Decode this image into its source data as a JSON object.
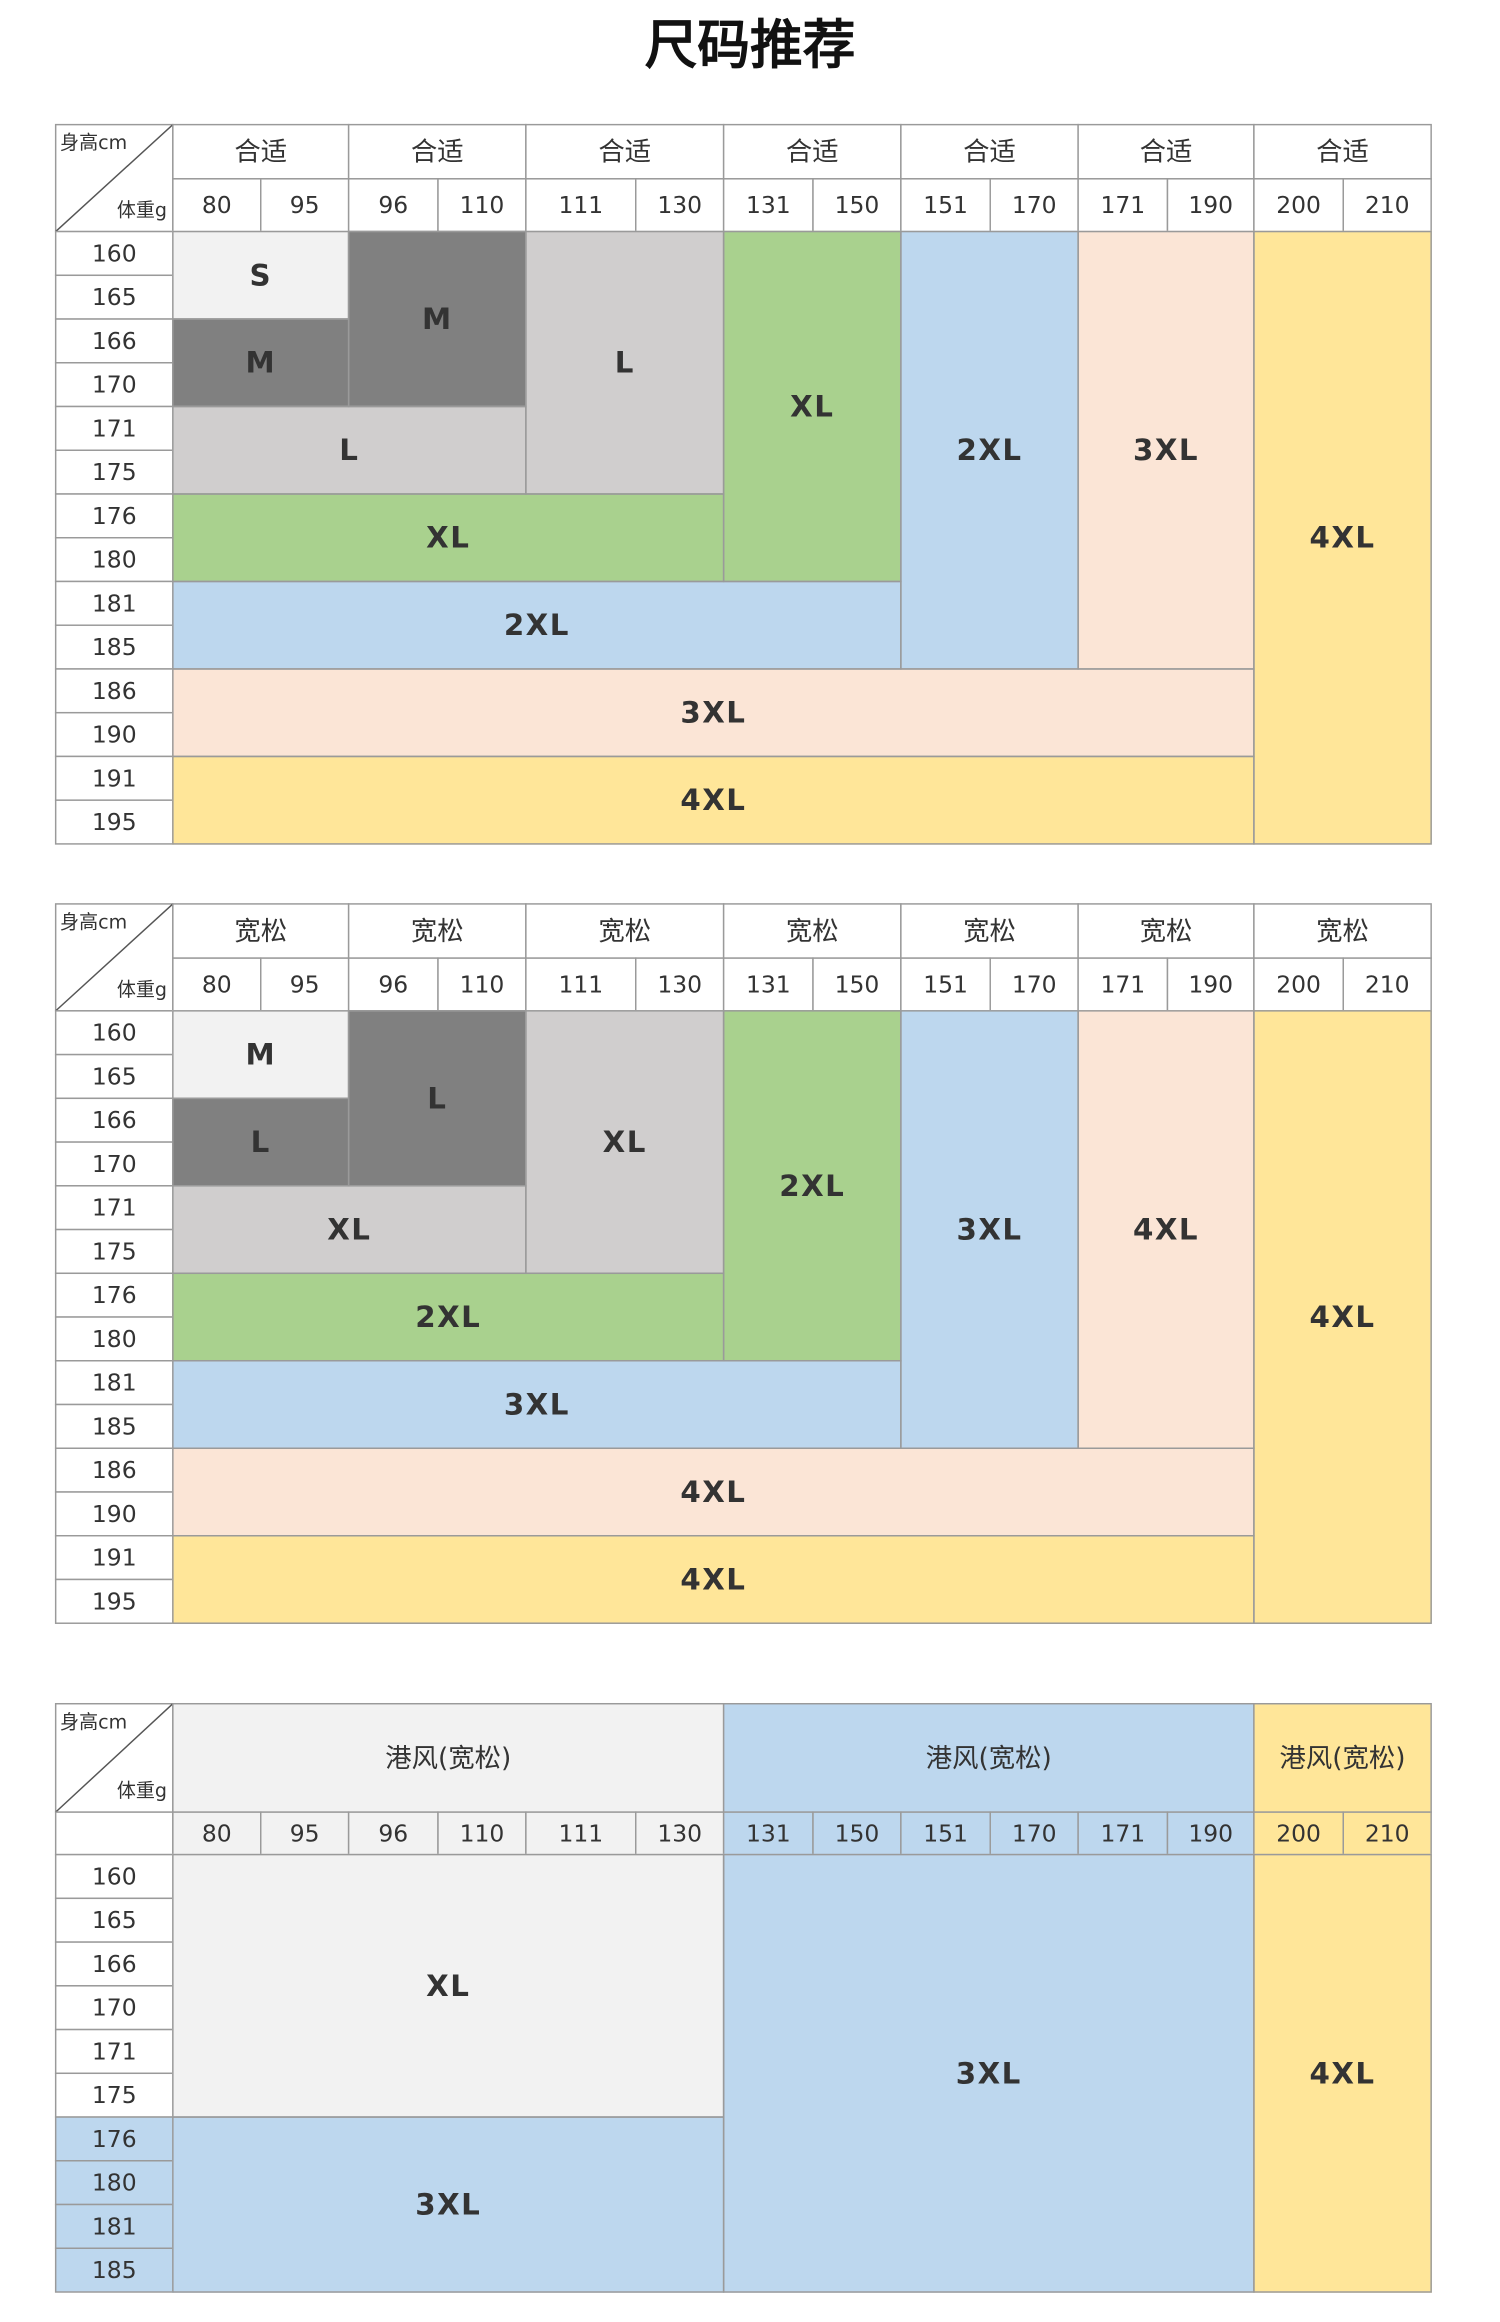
{
  "title": "尺码推荐",
  "tables": [
    {
      "corner": {
        "height": "身高cm",
        "weight": "体重g"
      },
      "groups": [
        {
          "label": "合适",
          "weights": [
            80,
            95
          ]
        },
        {
          "label": "合适",
          "weights": [
            96,
            110
          ]
        },
        {
          "label": "合适",
          "weights": [
            111,
            130
          ]
        },
        {
          "label": "合适",
          "weights": [
            131,
            150
          ]
        },
        {
          "label": "合适",
          "weights": [
            151,
            170
          ]
        },
        {
          "label": "合适",
          "weights": [
            171,
            190
          ]
        },
        {
          "label": "合适",
          "weights": [
            200,
            210
          ]
        }
      ],
      "weights": [
        80,
        95,
        96,
        110,
        111,
        130,
        131,
        150,
        151,
        170,
        171,
        190,
        200,
        210
      ],
      "heights": [
        160,
        165,
        166,
        170,
        171,
        175,
        176,
        180,
        181,
        185,
        186,
        190,
        191,
        195
      ],
      "blocks": [
        {
          "label": "S",
          "height": [
            160,
            165
          ],
          "weight": [
            80,
            95
          ],
          "color": "#f2f2f2"
        },
        {
          "label": "M",
          "height": [
            166,
            170
          ],
          "weight": [
            80,
            95
          ],
          "color": "#808080"
        },
        {
          "label": "M",
          "height": [
            160,
            170
          ],
          "weight": [
            96,
            110
          ],
          "color": "#808080"
        },
        {
          "label": "L",
          "height": [
            160,
            175
          ],
          "weight": [
            111,
            130
          ],
          "color": "#d0cece"
        },
        {
          "label": "L",
          "height": [
            171,
            175
          ],
          "weight": [
            80,
            110
          ],
          "color": "#d0cece"
        },
        {
          "label": "XL",
          "height": [
            160,
            180
          ],
          "weight": [
            131,
            150
          ],
          "color": "#a9d18e"
        },
        {
          "label": "XL",
          "height": [
            176,
            180
          ],
          "weight": [
            80,
            130
          ],
          "color": "#a9d18e"
        },
        {
          "label": "2XL",
          "height": [
            160,
            185
          ],
          "weight": [
            151,
            170
          ],
          "color": "#bdd7ee"
        },
        {
          "label": "2XL",
          "height": [
            181,
            185
          ],
          "weight": [
            80,
            150
          ],
          "color": "#bdd7ee"
        },
        {
          "label": "3XL",
          "height": [
            160,
            185
          ],
          "weight": [
            171,
            190
          ],
          "color": "#fbe5d6"
        },
        {
          "label": "3XL",
          "height": [
            186,
            190
          ],
          "weight": [
            80,
            190
          ],
          "color": "#fbe5d6"
        },
        {
          "label": "4XL",
          "height": [
            160,
            195
          ],
          "weight": [
            200,
            210
          ],
          "color": "#ffe699"
        },
        {
          "label": "4XL",
          "height": [
            191,
            195
          ],
          "weight": [
            80,
            190
          ],
          "color": "#ffe699"
        }
      ]
    },
    {
      "corner": {
        "height": "身高cm",
        "weight": "体重g"
      },
      "groups": [
        {
          "label": "宽松",
          "weights": [
            80,
            95
          ]
        },
        {
          "label": "宽松",
          "weights": [
            96,
            110
          ]
        },
        {
          "label": "宽松",
          "weights": [
            111,
            130
          ]
        },
        {
          "label": "宽松",
          "weights": [
            131,
            150
          ]
        },
        {
          "label": "宽松",
          "weights": [
            151,
            170
          ]
        },
        {
          "label": "宽松",
          "weights": [
            171,
            190
          ]
        },
        {
          "label": "宽松",
          "weights": [
            200,
            210
          ]
        }
      ],
      "weights": [
        80,
        95,
        96,
        110,
        111,
        130,
        131,
        150,
        151,
        170,
        171,
        190,
        200,
        210
      ],
      "heights": [
        160,
        165,
        166,
        170,
        171,
        175,
        176,
        180,
        181,
        185,
        186,
        190,
        191,
        195
      ],
      "blocks": [
        {
          "label": "M",
          "height": [
            160,
            165
          ],
          "weight": [
            80,
            95
          ],
          "color": "#f2f2f2"
        },
        {
          "label": "L",
          "height": [
            166,
            170
          ],
          "weight": [
            80,
            95
          ],
          "color": "#808080"
        },
        {
          "label": "L",
          "height": [
            160,
            170
          ],
          "weight": [
            96,
            110
          ],
          "color": "#808080"
        },
        {
          "label": "XL",
          "height": [
            160,
            175
          ],
          "weight": [
            111,
            130
          ],
          "color": "#d0cece"
        },
        {
          "label": "XL",
          "height": [
            171,
            175
          ],
          "weight": [
            80,
            110
          ],
          "color": "#d0cece"
        },
        {
          "label": "2XL",
          "height": [
            160,
            180
          ],
          "weight": [
            131,
            150
          ],
          "color": "#a9d18e"
        },
        {
          "label": "2XL",
          "height": [
            176,
            180
          ],
          "weight": [
            80,
            130
          ],
          "color": "#a9d18e"
        },
        {
          "label": "3XL",
          "height": [
            160,
            185
          ],
          "weight": [
            151,
            170
          ],
          "color": "#bdd7ee"
        },
        {
          "label": "3XL",
          "height": [
            181,
            185
          ],
          "weight": [
            80,
            150
          ],
          "color": "#bdd7ee"
        },
        {
          "label": "4XL",
          "height": [
            160,
            185
          ],
          "weight": [
            171,
            190
          ],
          "color": "#fbe5d6"
        },
        {
          "label": "4XL",
          "height": [
            186,
            190
          ],
          "weight": [
            80,
            190
          ],
          "color": "#fbe5d6"
        },
        {
          "label": "4XL",
          "height": [
            160,
            195
          ],
          "weight": [
            200,
            210
          ],
          "color": "#ffe699"
        },
        {
          "label": "4XL",
          "height": [
            191,
            195
          ],
          "weight": [
            80,
            190
          ],
          "color": "#ffe699"
        }
      ]
    },
    {
      "corner": {
        "height": "身高cm",
        "weight": "体重g"
      },
      "groups": [
        {
          "label": "港风(宽松)",
          "weights": [
            80,
            130
          ],
          "color": "#f2f2f2"
        },
        {
          "label": "港风(宽松)",
          "weights": [
            131,
            190
          ],
          "color": "#bdd7ee"
        },
        {
          "label": "港风(宽松)",
          "weights": [
            200,
            210
          ],
          "color": "#ffe699"
        }
      ],
      "weights": [
        80,
        95,
        96,
        110,
        111,
        130,
        131,
        150,
        151,
        170,
        171,
        190,
        200,
        210
      ],
      "heights": [
        160,
        165,
        166,
        170,
        171,
        175,
        176,
        180,
        181,
        185
      ],
      "height_colors": [
        null,
        null,
        null,
        null,
        null,
        null,
        "#bdd7ee",
        "#bdd7ee",
        "#bdd7ee",
        "#bdd7ee"
      ],
      "blocks": [
        {
          "label": "XL",
          "height": [
            160,
            175
          ],
          "weight": [
            80,
            130
          ],
          "color": "#f2f2f2"
        },
        {
          "label": "3XL",
          "height": [
            160,
            185
          ],
          "weight": [
            131,
            190
          ],
          "color": "#bdd7ee"
        },
        {
          "label": "3XL",
          "height": [
            176,
            185
          ],
          "weight": [
            80,
            130
          ],
          "color": "#bdd7ee"
        },
        {
          "label": "4XL",
          "height": [
            160,
            185
          ],
          "weight": [
            200,
            210
          ],
          "color": "#ffe699"
        }
      ]
    }
  ]
}
